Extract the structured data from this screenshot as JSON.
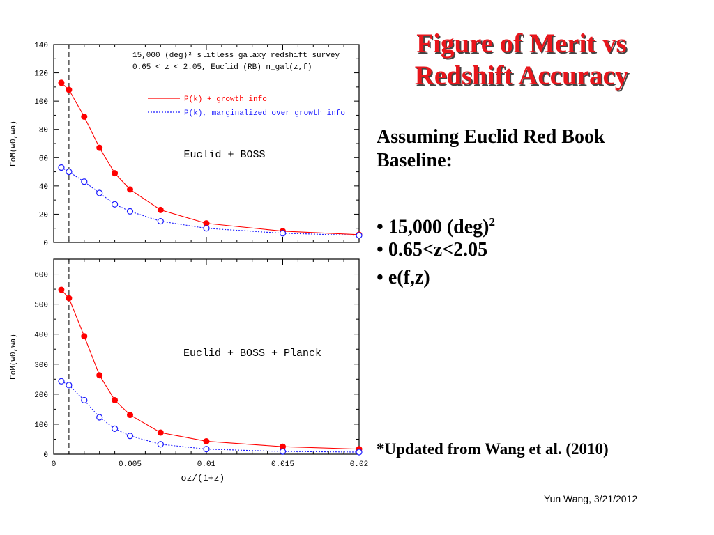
{
  "slide": {
    "title": "Figure of Merit vs Redshift Accuracy",
    "subtitle": "Assuming Euclid Red Book Baseline:",
    "bullets": [
      {
        "marker": "•",
        "text": "15,000 (deg)",
        "sup": "2"
      },
      {
        "marker": "•",
        "text": "0.65<z<2.05",
        "sup": ""
      },
      {
        "marker": "•",
        "text": "e(f,z)",
        "sup": ""
      }
    ],
    "footnote": "*Updated from Wang et al. (2010)",
    "credit": "Yun Wang, 3/21/2012",
    "colors": {
      "title": "#e8161c",
      "growth": "#ff0000",
      "marginalized": "#1a1aff"
    }
  },
  "chart_data": [
    {
      "type": "line",
      "header_lines": [
        "15,000 (deg)² slitless galaxy redshift survey",
        "0.65 < z < 2.05, Euclid (RB) n_gal(z,f)"
      ],
      "annotation": "Euclid + BOSS",
      "ylabel": "FoM(w0,wa)",
      "xlabel": "",
      "xlim": [
        0,
        0.02
      ],
      "ylim": [
        0,
        140
      ],
      "xticks": [
        0,
        0.005,
        0.01,
        0.015,
        0.02
      ],
      "yticks": [
        0,
        20,
        40,
        60,
        80,
        100,
        120,
        140
      ],
      "ytick_labels": [
        "0",
        "20",
        "40",
        "60",
        "80",
        "100",
        "120",
        "140"
      ],
      "vline_x": 0.001,
      "legend": [
        "P(k) + growth info",
        "P(k), marginalized over growth info"
      ],
      "x": [
        0.0005,
        0.001,
        0.002,
        0.003,
        0.004,
        0.005,
        0.007,
        0.01,
        0.015,
        0.02
      ],
      "series": [
        {
          "name": "P(k) + growth info",
          "values": [
            113,
            108,
            89,
            67,
            49,
            37.5,
            23,
            13.5,
            8,
            5.5
          ]
        },
        {
          "name": "P(k), marginalized over growth info",
          "values": [
            53,
            50,
            43,
            35,
            27,
            22,
            15,
            10,
            6.5,
            5
          ]
        }
      ]
    },
    {
      "type": "line",
      "annotation": "Euclid + BOSS + Planck",
      "ylabel": "FoM(w0,wa)",
      "xlabel": "σz/(1+z)",
      "xlim": [
        0,
        0.02
      ],
      "ylim": [
        0,
        650
      ],
      "xticks": [
        0,
        0.005,
        0.01,
        0.015,
        0.02
      ],
      "xtick_labels": [
        "0",
        "0.005",
        "0.01",
        "0.015",
        "0.02"
      ],
      "yticks": [
        0,
        100,
        200,
        300,
        400,
        500,
        600
      ],
      "ytick_labels": [
        "0",
        "100",
        "200",
        "300",
        "400",
        "500",
        "600"
      ],
      "vline_x": 0.001,
      "x": [
        0.0005,
        0.001,
        0.002,
        0.003,
        0.004,
        0.005,
        0.007,
        0.01,
        0.015,
        0.02
      ],
      "series": [
        {
          "name": "P(k) + growth info",
          "values": [
            548,
            520,
            393,
            263,
            180,
            131,
            72,
            43,
            25,
            17
          ]
        },
        {
          "name": "P(k), marginalized over growth info",
          "values": [
            243,
            230,
            180,
            123,
            85,
            61,
            33,
            17,
            9,
            7
          ]
        }
      ]
    }
  ]
}
